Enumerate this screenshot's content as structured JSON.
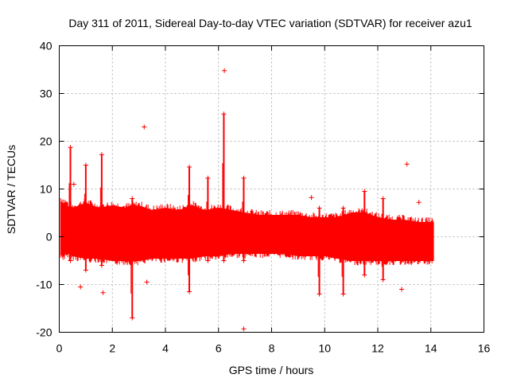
{
  "chart_data": {
    "type": "scatter",
    "title": "Day 311 of 2011, Sidereal Day-to-day VTEC variation (SDTVAR) for receiver azu1",
    "xlabel": "GPS time / hours",
    "ylabel": "SDTVAR / TECUs",
    "xlim": [
      0,
      16
    ],
    "ylim": [
      -20,
      40
    ],
    "xticks": [
      0,
      2,
      4,
      6,
      8,
      10,
      12,
      14,
      16
    ],
    "yticks": [
      -20,
      -10,
      0,
      10,
      20,
      30,
      40
    ],
    "grid": true,
    "marker": "+",
    "color": "#ff0000",
    "series": [
      {
        "name": "SDTVAR",
        "band": {
          "x_start": 0.05,
          "x_end": 14.1,
          "x": [
            0.0,
            0.5,
            1.0,
            1.5,
            2.0,
            2.5,
            3.0,
            3.5,
            4.0,
            4.5,
            5.0,
            5.5,
            6.0,
            6.5,
            7.0,
            7.5,
            8.0,
            8.5,
            9.0,
            9.5,
            10.0,
            10.5,
            11.0,
            11.5,
            12.0,
            12.5,
            13.0,
            13.5,
            14.0,
            14.1
          ],
          "upper": [
            8,
            6,
            7,
            6,
            6.5,
            6,
            6.5,
            5.5,
            6,
            5.5,
            6.5,
            5.5,
            6,
            5.5,
            5,
            4.5,
            4.5,
            4.5,
            4.5,
            4,
            4,
            4,
            5,
            5,
            4,
            3.5,
            3.5,
            3,
            3,
            3
          ],
          "lower": [
            -4,
            -4,
            -4.5,
            -4.5,
            -5,
            -5,
            -5,
            -4.5,
            -4.5,
            -4.5,
            -4.5,
            -4,
            -4,
            -3.5,
            -3.5,
            -3.5,
            -3.5,
            -3.5,
            -4,
            -4,
            -4,
            -4.5,
            -5,
            -5,
            -5,
            -5,
            -5,
            -5,
            -5,
            -5
          ]
        },
        "spikes": [
          {
            "x": 0.42,
            "hi": 18.7,
            "lo": -5
          },
          {
            "x": 1.0,
            "hi": 15.0,
            "lo": -7
          },
          {
            "x": 1.6,
            "hi": 17.2,
            "lo": -6
          },
          {
            "x": 2.75,
            "hi": 8.0,
            "lo": -17.0
          },
          {
            "x": 4.9,
            "hi": 14.6,
            "lo": -11.5
          },
          {
            "x": 5.6,
            "hi": 12.3,
            "lo": -5
          },
          {
            "x": 6.2,
            "hi": 25.7,
            "lo": -5
          },
          {
            "x": 6.95,
            "hi": 12.3,
            "lo": -5
          },
          {
            "x": 9.8,
            "hi": 6.0,
            "lo": -12.0
          },
          {
            "x": 10.7,
            "hi": 6.0,
            "lo": -12.0
          },
          {
            "x": 11.5,
            "hi": 9.5,
            "lo": -8.0
          },
          {
            "x": 12.2,
            "hi": 8.0,
            "lo": -9.0
          }
        ],
        "outliers": [
          {
            "x": 6.22,
            "y": 34.8
          },
          {
            "x": 3.2,
            "y": 23.0
          },
          {
            "x": 13.1,
            "y": 15.2
          },
          {
            "x": 13.55,
            "y": 7.2
          },
          {
            "x": 6.95,
            "y": -19.3
          },
          {
            "x": 12.9,
            "y": -11.0
          },
          {
            "x": 1.65,
            "y": -11.7
          },
          {
            "x": 0.8,
            "y": -10.5
          },
          {
            "x": 3.3,
            "y": -9.5
          },
          {
            "x": 9.5,
            "y": 8.2
          },
          {
            "x": 0.55,
            "y": 11.0
          }
        ]
      }
    ]
  }
}
